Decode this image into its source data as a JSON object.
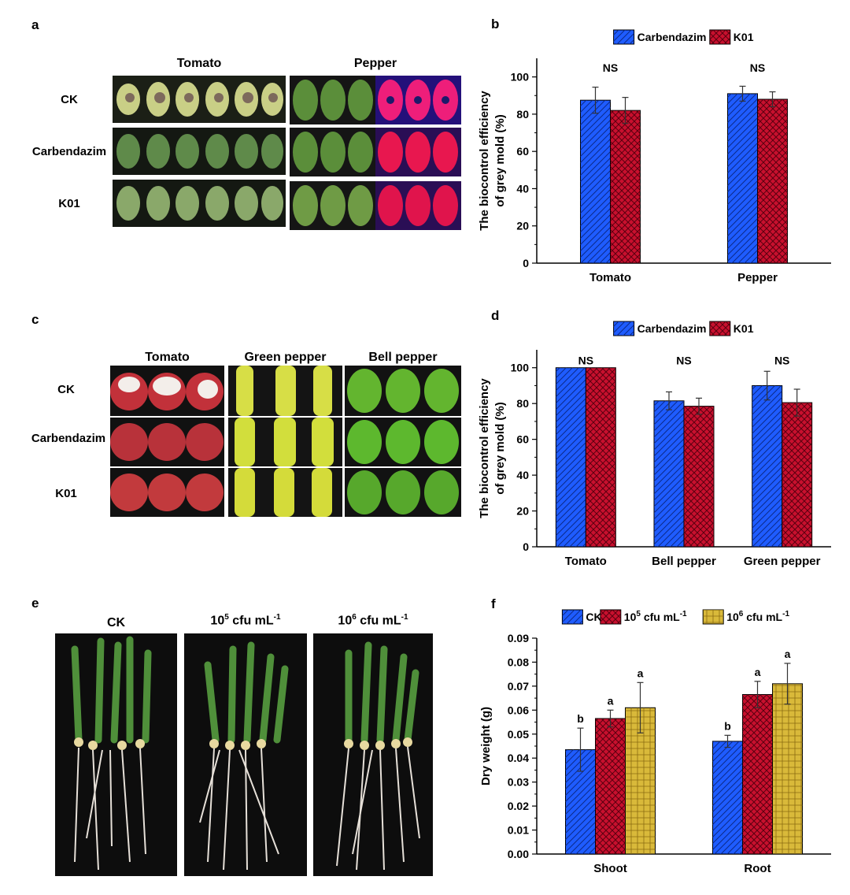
{
  "panels": {
    "a": {
      "label": "a",
      "col_headers": [
        "Tomato",
        "Pepper"
      ],
      "row_labels": [
        "CK",
        "Carbendazim",
        "K01"
      ]
    },
    "c": {
      "label": "c",
      "col_headers": [
        "Tomato",
        "Green pepper",
        "Bell pepper"
      ],
      "row_labels": [
        "CK",
        "Carbendazim",
        "K01"
      ]
    },
    "e": {
      "label": "e",
      "col_headers": [
        {
          "base": "CK",
          "exp": "",
          "unit": "",
          "unit_exp": ""
        },
        {
          "base": "10",
          "exp": "5",
          "unit": " cfu mL",
          "unit_exp": "-1"
        },
        {
          "base": "10",
          "exp": "6",
          "unit": " cfu mL",
          "unit_exp": "-1"
        }
      ]
    }
  },
  "colors": {
    "blue": "#1f5cff",
    "red": "#c8102e",
    "yellow": "#d9b93a",
    "dark_bg": "#0d0d0d"
  },
  "chart_data": [
    {
      "id": "b",
      "panel_label": "b",
      "type": "bar",
      "ylabel": [
        "The biocontrol efficiency",
        "of grey mold (%)"
      ],
      "ylim": [
        0,
        110
      ],
      "yticks": [
        0,
        20,
        40,
        60,
        80,
        100
      ],
      "categories": [
        "Tomato",
        "Pepper"
      ],
      "series": [
        {
          "name": "Carbendazim",
          "color": "#1f5cff",
          "hatch": "diag",
          "values": [
            87.5,
            91
          ],
          "errors": [
            7,
            4
          ]
        },
        {
          "name": "K01",
          "color": "#c8102e",
          "hatch": "cross",
          "values": [
            82,
            88
          ],
          "errors": [
            7,
            4
          ]
        }
      ],
      "annotations": [
        {
          "category": 0,
          "text": "NS",
          "y": 105
        },
        {
          "category": 1,
          "text": "NS",
          "y": 105
        }
      ],
      "legend": "top"
    },
    {
      "id": "d",
      "panel_label": "d",
      "type": "bar",
      "ylabel": [
        "The biocontrol efficiency",
        "of grey mold (%)"
      ],
      "ylim": [
        0,
        110
      ],
      "yticks": [
        0,
        20,
        40,
        60,
        80,
        100
      ],
      "categories": [
        "Tomato",
        "Bell pepper",
        "Green pepper"
      ],
      "series": [
        {
          "name": "Carbendazim",
          "color": "#1f5cff",
          "hatch": "diag",
          "values": [
            100,
            81.5,
            90
          ],
          "errors": [
            0,
            5,
            8
          ]
        },
        {
          "name": "K01",
          "color": "#c8102e",
          "hatch": "cross",
          "values": [
            100,
            78.5,
            80.5
          ],
          "errors": [
            0,
            4.5,
            7.5
          ]
        }
      ],
      "annotations": [
        {
          "category": 0,
          "text": "NS",
          "y": 104
        },
        {
          "category": 1,
          "text": "NS",
          "y": 104
        },
        {
          "category": 2,
          "text": "NS",
          "y": 104
        }
      ],
      "legend": "top"
    },
    {
      "id": "f",
      "panel_label": "f",
      "type": "bar",
      "ylabel": [
        "Dry weight (g)"
      ],
      "ylim": [
        0,
        0.09
      ],
      "yticks": [
        0,
        0.01,
        0.02,
        0.03,
        0.04,
        0.05,
        0.06,
        0.07,
        0.08,
        0.09
      ],
      "ytick_decimals": 2,
      "categories": [
        "Shoot",
        "Root"
      ],
      "series": [
        {
          "name": "CK",
          "color": "#1f5cff",
          "hatch": "diag",
          "values": [
            0.0435,
            0.047
          ],
          "errors": [
            0.009,
            0.0025
          ],
          "letters": [
            "b",
            "b"
          ]
        },
        {
          "name": "10^5 cfu mL^-1",
          "color": "#c8102e",
          "hatch": "cross",
          "values": [
            0.0565,
            0.0665
          ],
          "errors": [
            0.0035,
            0.0055
          ],
          "letters": [
            "a",
            "a"
          ]
        },
        {
          "name": "10^6 cfu mL^-1",
          "color": "#d9b93a",
          "hatch": "dots",
          "values": [
            0.061,
            0.071
          ],
          "errors": [
            0.0105,
            0.0085
          ],
          "letters": [
            "a",
            "a"
          ]
        }
      ],
      "legend": "top"
    }
  ]
}
